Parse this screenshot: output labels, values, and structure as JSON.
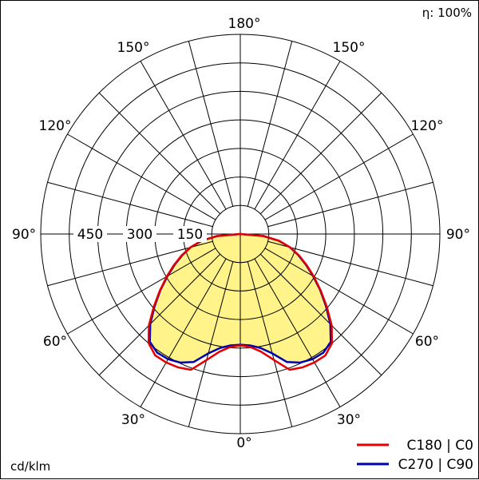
{
  "chart_data": {
    "type": "polar",
    "efficiency_label": "η: 100%",
    "unit_label": "cd/klm",
    "radial_ticks": [
      150,
      300,
      450
    ],
    "radial_max": 525,
    "angle_labels": {
      "top": "180°",
      "bottom": "0°",
      "left_90": "90°",
      "right_90": "90°",
      "upper_left_150": "150°",
      "upper_right_150": "150°",
      "upper_left_120": "120°",
      "upper_right_120": "120°",
      "lower_left_60": "60°",
      "lower_right_60": "60°",
      "lower_left_30": "30°",
      "lower_right_30": "30°"
    },
    "tick_labels": [
      "450",
      "300",
      "150"
    ],
    "series": [
      {
        "name": "C180 | C0",
        "color": "#e30000",
        "angles_deg": [
          0,
          5,
          10,
          15,
          20,
          25,
          30,
          35,
          40,
          45,
          50,
          55,
          60,
          65,
          70,
          75,
          80,
          85,
          90
        ],
        "values": [
          293,
          298,
          314,
          343,
          380,
          387,
          390,
          390,
          375,
          340,
          297,
          258,
          223,
          192,
          164,
          136,
          104,
          62,
          0
        ]
      },
      {
        "name": "C270 | C90",
        "color": "#0000b0",
        "angles_deg": [
          0,
          5,
          10,
          15,
          20,
          25,
          30,
          35,
          40,
          45,
          50,
          55,
          60,
          65,
          70,
          75,
          80,
          85,
          90
        ],
        "values": [
          291,
          294,
          304,
          325,
          358,
          373,
          380,
          381,
          370,
          335,
          294,
          256,
          221,
          190,
          162,
          135,
          103,
          61,
          0
        ]
      }
    ]
  }
}
